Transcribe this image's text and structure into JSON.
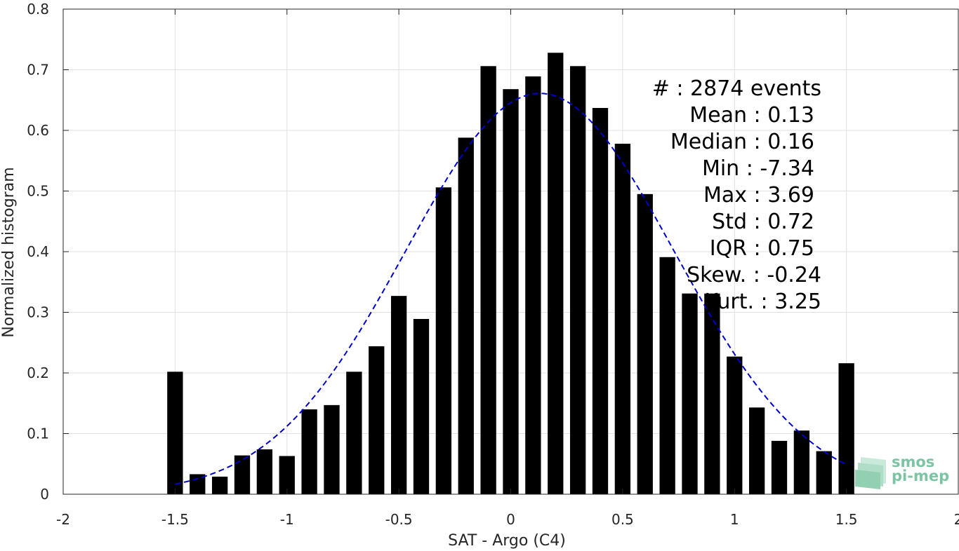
{
  "chart_data": {
    "type": "bar",
    "xlabel": "SAT - Argo (C4)",
    "ylabel": "Normalized histogram",
    "xlim": [
      -2,
      2
    ],
    "ylim": [
      0,
      0.8
    ],
    "grid": true,
    "xticks": [
      "-2",
      "-1.5",
      "-1",
      "-0.5",
      "0",
      "0.5",
      "1",
      "1.5",
      "2"
    ],
    "yticks": [
      "0",
      "0.1",
      "0.2",
      "0.3",
      "0.4",
      "0.5",
      "0.6",
      "0.7",
      "0.8"
    ],
    "bar_width": 0.07,
    "bar_color": "#000000",
    "x": [
      -1.5,
      -1.4,
      -1.3,
      -1.2,
      -1.1,
      -1.0,
      -0.9,
      -0.8,
      -0.7,
      -0.6,
      -0.5,
      -0.4,
      -0.3,
      -0.2,
      -0.1,
      0.0,
      0.1,
      0.2,
      0.3,
      0.4,
      0.5,
      0.6,
      0.7,
      0.8,
      0.9,
      1.0,
      1.1,
      1.2,
      1.3,
      1.4,
      1.5
    ],
    "values": [
      0.202,
      0.033,
      0.029,
      0.064,
      0.074,
      0.063,
      0.14,
      0.147,
      0.202,
      0.244,
      0.327,
      0.289,
      0.506,
      0.588,
      0.706,
      0.668,
      0.689,
      0.728,
      0.706,
      0.637,
      0.578,
      0.495,
      0.391,
      0.331,
      0.331,
      0.227,
      0.143,
      0.088,
      0.105,
      0.071,
      0.216
    ],
    "fit": {
      "type": "gaussian",
      "color": "#0000cc",
      "style": "dashed",
      "mean": 0.13,
      "std": 0.6,
      "peak": 0.661,
      "x_range": [
        -1.5,
        1.5
      ]
    },
    "stats": [
      "#  : 2874 events",
      "Mean : 0.13",
      "Median : 0.16",
      "Min : -7.34",
      "Max : 3.69",
      "Std : 0.72",
      "IQR : 0.75",
      "Skew. : -0.24",
      "Kurt. : 3.25"
    ]
  },
  "logo": {
    "line1": "smos",
    "line2": "pi-mep",
    "color": "#7cc4a4"
  }
}
